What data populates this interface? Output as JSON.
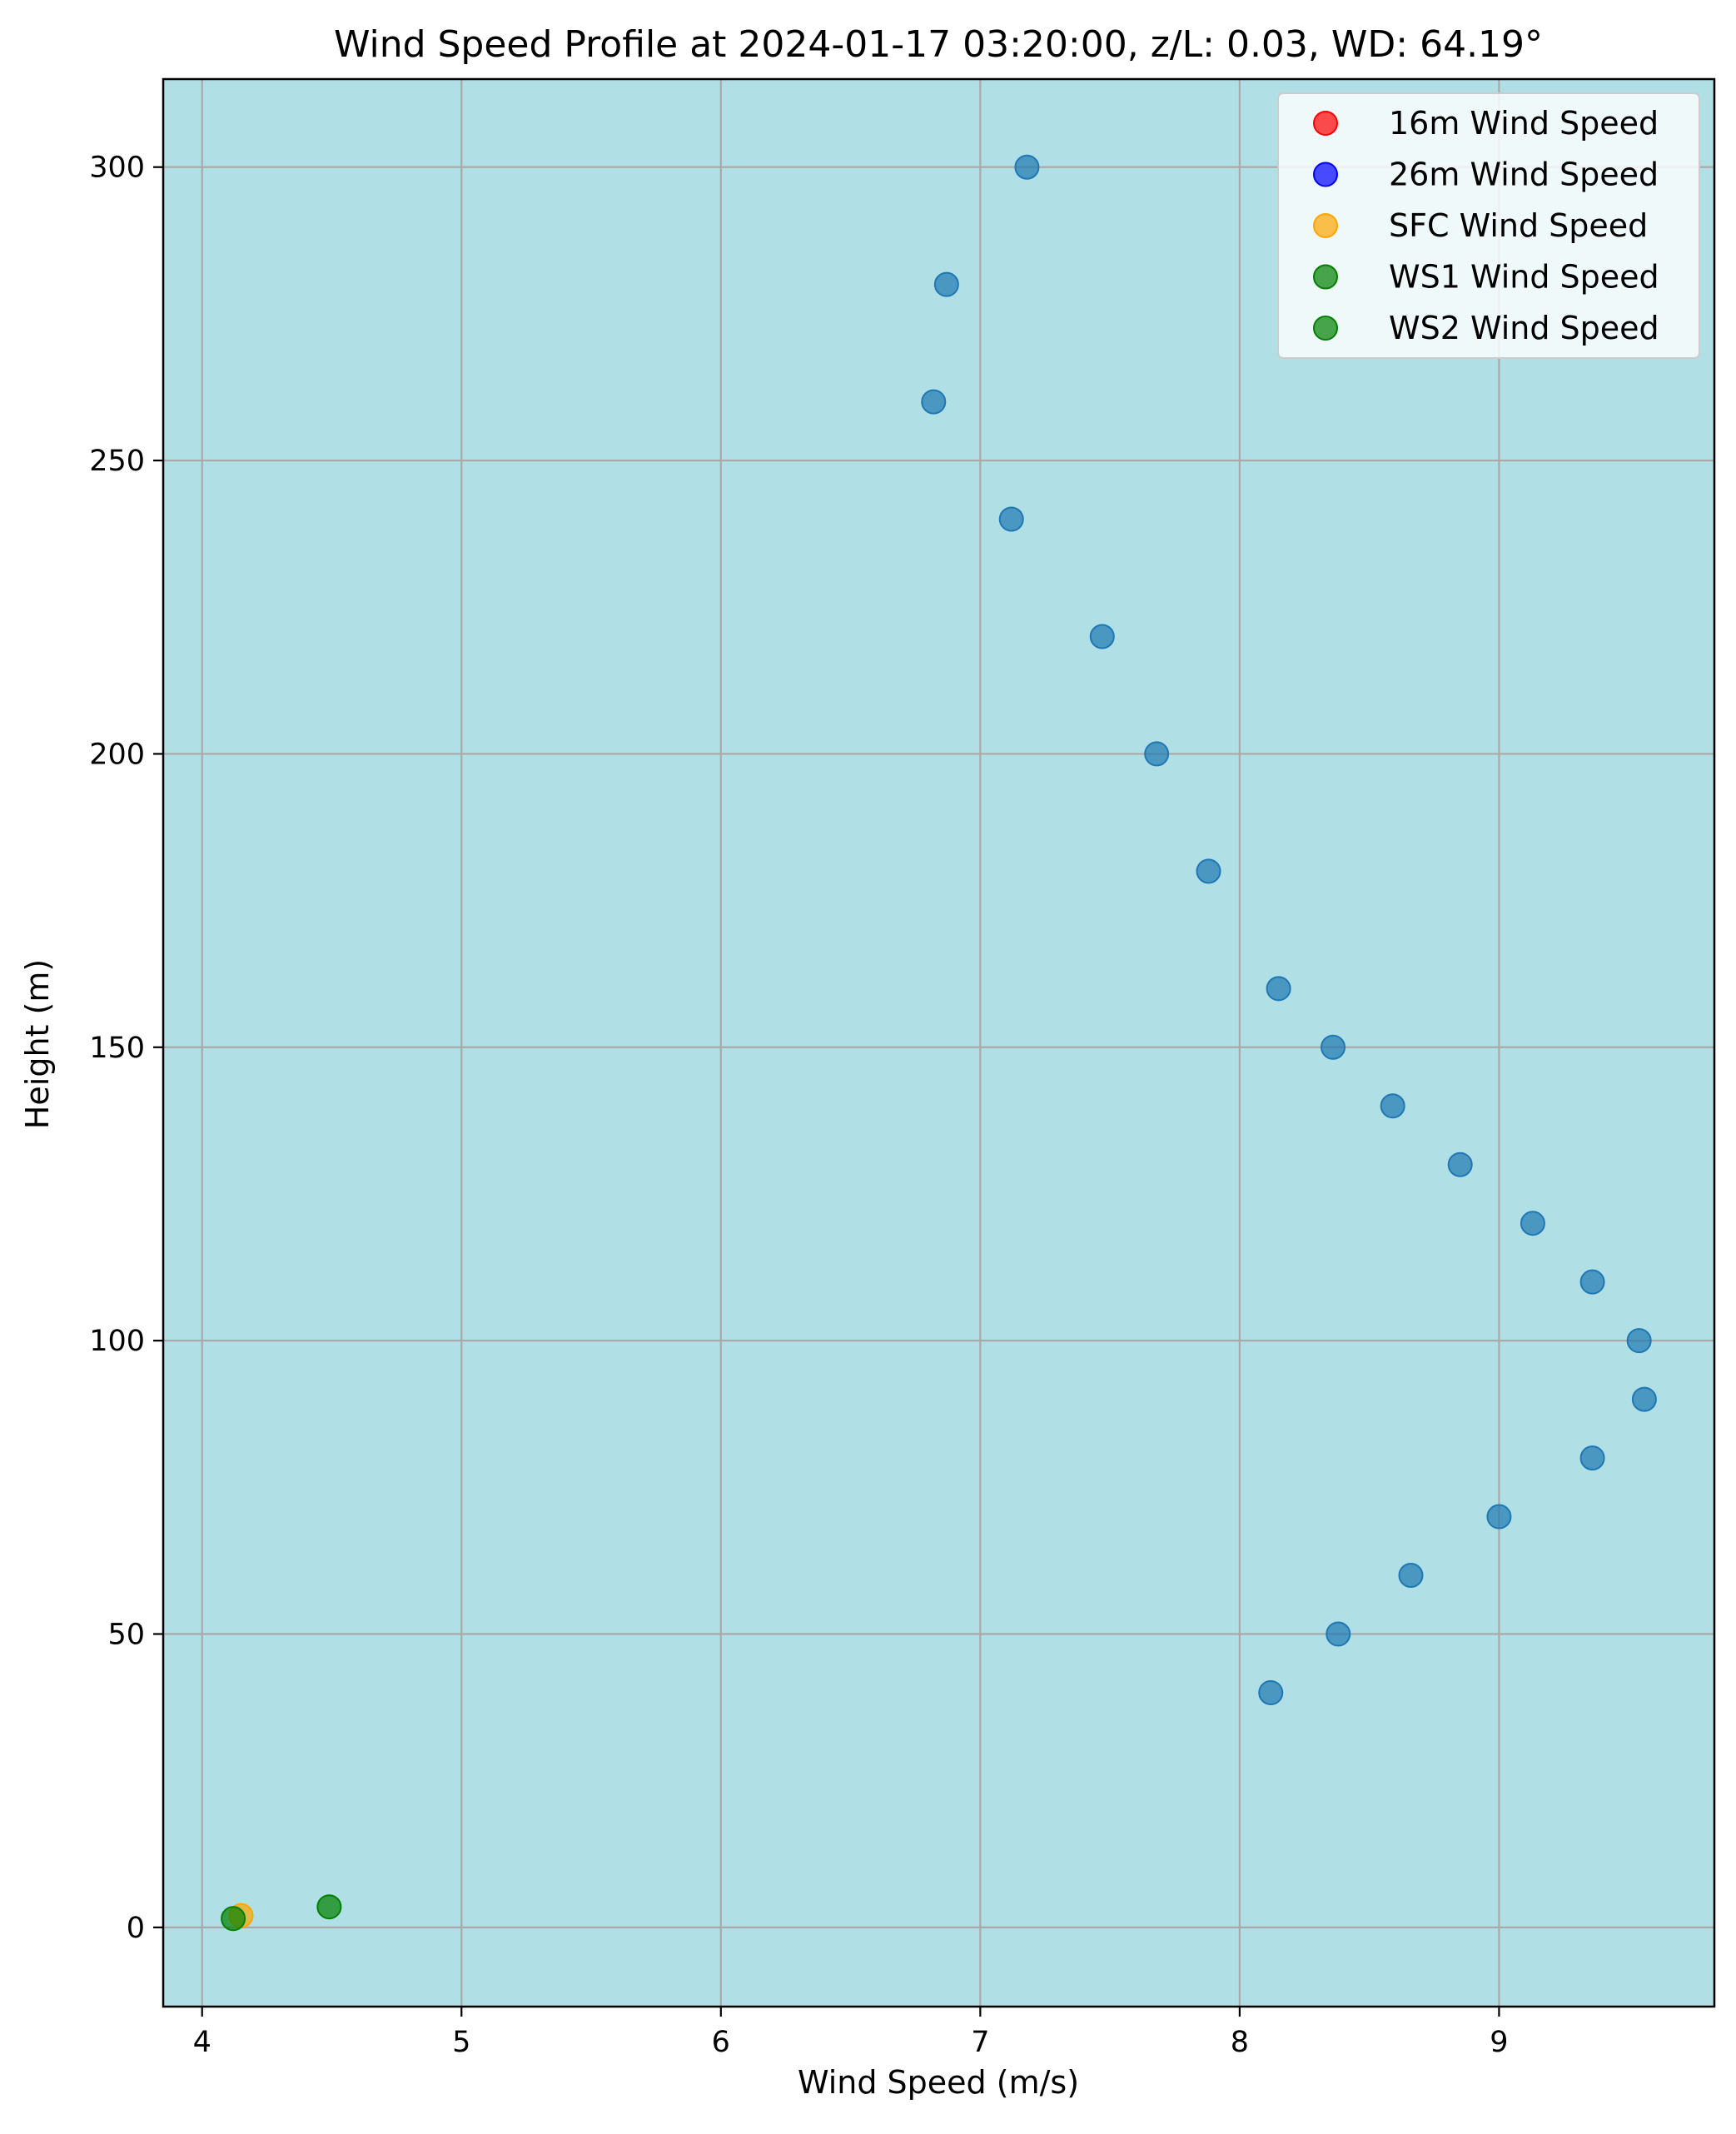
{
  "chart_data": {
    "type": "scatter",
    "title": "Wind Speed Profile at 2024-01-17 03:20:00, z/L: 0.03, WD: 64.19°",
    "xlabel": "Wind Speed (m/s)",
    "ylabel": "Height (m)",
    "xlim": [
      3.85,
      9.83
    ],
    "ylim": [
      -13.5,
      315
    ],
    "xticks": [
      4,
      5,
      6,
      7,
      8,
      9
    ],
    "yticks": [
      0,
      50,
      100,
      150,
      200,
      250,
      300
    ],
    "xtick_labels": [
      "4",
      "5",
      "6",
      "7",
      "8",
      "9"
    ],
    "ytick_labels": [
      "0",
      "50",
      "100",
      "150",
      "200",
      "250",
      "300"
    ],
    "grid": true,
    "background_color": "#b0dfe5",
    "legend_position": "top-right",
    "legend": [
      {
        "label": "16m Wind Speed",
        "color": "#ff0000"
      },
      {
        "label": "26m Wind Speed",
        "color": "#0000ff"
      },
      {
        "label": "SFC Wind Speed",
        "color": "#ffa500"
      },
      {
        "label": "WS1 Wind Speed",
        "color": "#008000"
      },
      {
        "label": "WS2 Wind Speed",
        "color": "#008000"
      }
    ],
    "series": [
      {
        "color": "#1f77b4",
        "points": [
          {
            "x": 7.18,
            "y": 300
          },
          {
            "x": 6.87,
            "y": 280
          },
          {
            "x": 6.82,
            "y": 260
          },
          {
            "x": 7.12,
            "y": 240
          },
          {
            "x": 7.47,
            "y": 220
          },
          {
            "x": 7.68,
            "y": 200
          },
          {
            "x": 7.88,
            "y": 180
          },
          {
            "x": 8.15,
            "y": 160
          },
          {
            "x": 8.36,
            "y": 150
          },
          {
            "x": 8.59,
            "y": 140
          },
          {
            "x": 8.85,
            "y": 130
          },
          {
            "x": 9.13,
            "y": 120
          },
          {
            "x": 9.36,
            "y": 110
          },
          {
            "x": 9.54,
            "y": 100
          },
          {
            "x": 9.56,
            "y": 90
          },
          {
            "x": 9.36,
            "y": 80
          },
          {
            "x": 9.0,
            "y": 70
          },
          {
            "x": 8.66,
            "y": 60
          },
          {
            "x": 8.38,
            "y": 50
          },
          {
            "x": 8.12,
            "y": 40
          }
        ]
      },
      {
        "name": "SFC Wind Speed",
        "color": "#ffa500",
        "points": [
          {
            "x": 4.15,
            "y": 2
          }
        ]
      },
      {
        "name": "WS1 Wind Speed",
        "color": "#008000",
        "points": [
          {
            "x": 4.12,
            "y": 1.5
          }
        ]
      },
      {
        "name": "WS2 Wind Speed",
        "color": "#008000",
        "points": [
          {
            "x": 4.49,
            "y": 3.5
          }
        ]
      }
    ]
  }
}
